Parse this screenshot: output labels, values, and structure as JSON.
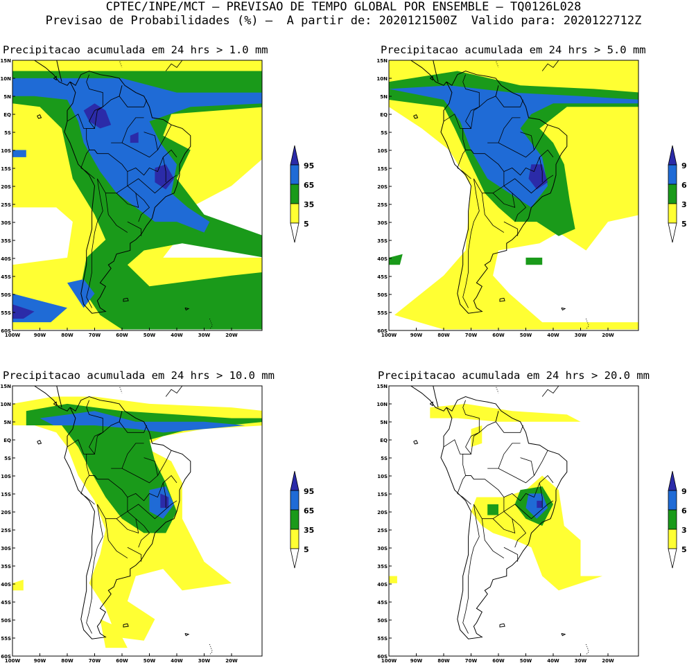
{
  "header": {
    "line1": "CPTEC/INPE/MCT — PREVISAO DE TEMPO GLOBAL POR ENSEMBLE — TQ0126L028",
    "line2": "Previsao de Probabilidades (%) —  A partir de: 2020121500Z  Valido para: 2020122712Z"
  },
  "lat_labels": [
    "15N",
    "10N",
    "5N",
    "EQ",
    "5S",
    "10S",
    "15S",
    "20S",
    "25S",
    "30S",
    "35S",
    "40S",
    "45S",
    "50S",
    "55S",
    "60S"
  ],
  "lon_labels": [
    "100W",
    "90W",
    "80W",
    "70W",
    "60W",
    "50W",
    "40W",
    "30W",
    "20W"
  ],
  "colorbar": {
    "levels": [
      "95",
      "65",
      "35",
      "5"
    ],
    "colors": [
      "#2b2ba8",
      "#1f6bd6",
      "#1a9a1a",
      "#ffff33"
    ]
  },
  "panels": [
    {
      "title": "Precipitacao acumulada em 24 hrs > 1.0 mm"
    },
    {
      "title": "Precipitacao acumulada em 24 hrs > 5.0 mm"
    },
    {
      "title": "Precipitacao acumulada em 24 hrs > 10.0 mm"
    },
    {
      "title": "Precipitacao acumulada em 24 hrs > 20.0 mm"
    }
  ]
}
